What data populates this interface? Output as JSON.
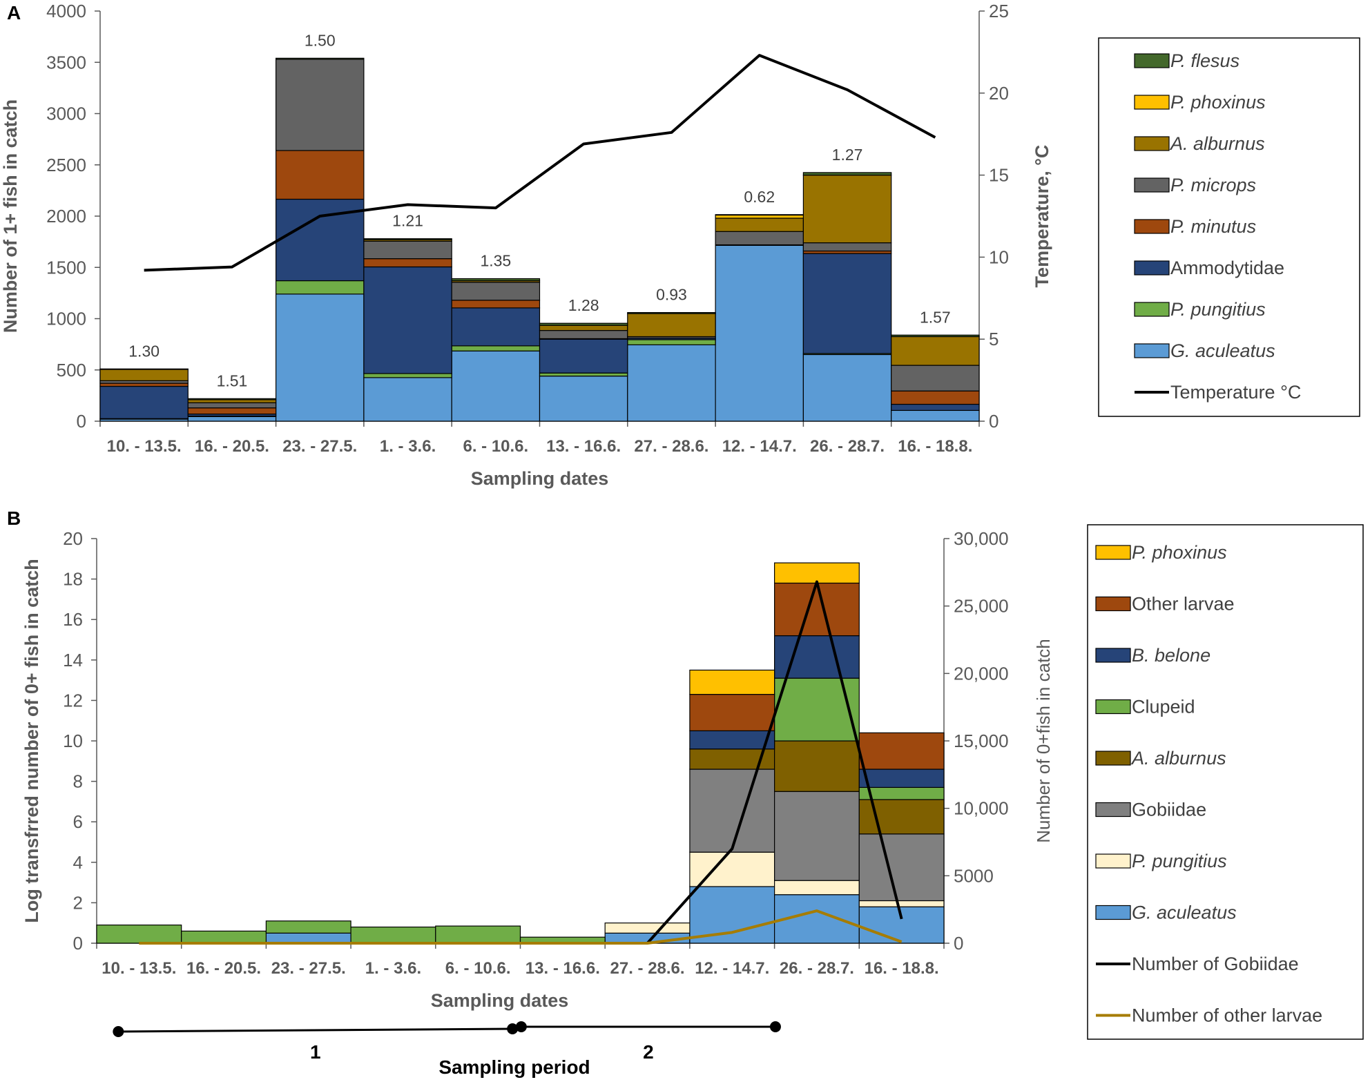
{
  "chart_data": [
    {
      "panel": "A",
      "type": "bar",
      "stacked": true,
      "ylabel": "Number of 1+ fish in catch",
      "y2label": "Temperature, °C",
      "xlabel": "Sampling dates",
      "ylim": [
        0,
        4000
      ],
      "yticks": [
        0,
        500,
        1000,
        1500,
        2000,
        2500,
        3000,
        3500,
        4000
      ],
      "y2lim": [
        0,
        25
      ],
      "y2ticks": [
        0,
        5,
        10,
        15,
        20,
        25
      ],
      "categories": [
        "10. - 13.5.",
        "16. - 20.5.",
        "23. - 27.5.",
        "1. - 3.6.",
        "6. - 10.6.",
        "13. - 16.6.",
        "27. - 28.6.",
        "12. - 14.7.",
        "26. - 28.7.",
        "16. - 18.8."
      ],
      "series": [
        {
          "name": "G. aculeatus",
          "color": "#5B9BD5",
          "italic": true,
          "values": [
            20,
            45,
            1240,
            425,
            685,
            440,
            745,
            1715,
            650,
            105
          ]
        },
        {
          "name": "P. pungitius",
          "color": "#70AD47",
          "italic": true,
          "values": [
            5,
            5,
            130,
            40,
            50,
            30,
            50,
            0,
            10,
            0
          ]
        },
        {
          "name": "Ammodytidae",
          "color": "#264478",
          "italic": false,
          "values": [
            315,
            20,
            795,
            1040,
            370,
            330,
            15,
            0,
            975,
            60
          ]
        },
        {
          "name": "P. minutus",
          "color": "#9E480E",
          "italic": true,
          "values": [
            30,
            60,
            475,
            80,
            75,
            5,
            0,
            5,
            25,
            130
          ]
        },
        {
          "name": "P. microps",
          "color": "#636363",
          "italic": true,
          "values": [
            25,
            50,
            890,
            170,
            175,
            80,
            15,
            130,
            80,
            250
          ]
        },
        {
          "name": "A. alburnus",
          "color": "#997300",
          "italic": true,
          "values": [
            110,
            30,
            0,
            15,
            15,
            50,
            225,
            130,
            660,
            280
          ]
        },
        {
          "name": "P. phoxinus",
          "color": "#FFC000",
          "italic": true,
          "values": [
            0,
            0,
            0,
            0,
            0,
            0,
            0,
            30,
            0,
            0
          ]
        },
        {
          "name": "P. flesus",
          "color": "#43682B",
          "italic": true,
          "values": [
            5,
            10,
            10,
            10,
            20,
            20,
            10,
            5,
            25,
            15
          ]
        }
      ],
      "line": {
        "name": "Temperature °C",
        "color": "#000000",
        "values": [
          9.2,
          9.4,
          12.5,
          13.2,
          13.0,
          16.9,
          17.6,
          22.3,
          20.2,
          17.3
        ]
      },
      "bar_labels": [
        "1.30",
        "1.51",
        "1.50",
        "1.21",
        "1.35",
        "1.28",
        "0.93",
        "0.62",
        "1.27",
        "1.57"
      ],
      "legend": [
        "P. flesus",
        "P. phoxinus",
        "A. alburnus",
        "P. microps",
        "P. minutus",
        "Ammodytidae",
        "P. pungitius",
        "G. aculeatus",
        "Temperature °C"
      ]
    },
    {
      "panel": "B",
      "type": "bar",
      "stacked": true,
      "ylabel": "Log transfrred number of 0+ fish in catch",
      "y2label": "Number of 0+fish in catch",
      "xlabel": "Sampling dates",
      "ylim": [
        0,
        20
      ],
      "yticks": [
        0,
        2,
        4,
        6,
        8,
        10,
        12,
        14,
        16,
        18,
        20
      ],
      "y2lim": [
        0,
        30000
      ],
      "y2ticks": [
        "0",
        "5000",
        "10,000",
        "15,000",
        "20,000",
        "25,000",
        "30,000"
      ],
      "categories": [
        "10. - 13.5.",
        "16. - 20.5.",
        "23. - 27.5.",
        "1. - 3.6.",
        "6. - 10.6.",
        "13. - 16.6.",
        "27. - 28.6.",
        "12. - 14.7.",
        "26. - 28.7.",
        "16. - 18.8."
      ],
      "series": [
        {
          "name": "G. aculeatus",
          "color": "#5B9BD5",
          "italic": true,
          "values": [
            0,
            0,
            0.5,
            0,
            0,
            0,
            0.5,
            2.8,
            2.4,
            1.8
          ]
        },
        {
          "name": "P. pungitius",
          "color": "#FFF2CC",
          "italic": true,
          "values": [
            0,
            0,
            0,
            0,
            0,
            0,
            0.5,
            1.7,
            0.7,
            0.3
          ]
        },
        {
          "name": "Gobiidae",
          "color": "#808080",
          "italic": false,
          "values": [
            0,
            0,
            0,
            0,
            0,
            0,
            0,
            4.1,
            4.4,
            3.3
          ]
        },
        {
          "name": "A. alburnus",
          "color": "#7F6000",
          "italic": true,
          "values": [
            0,
            0,
            0,
            0,
            0,
            0,
            0,
            1.0,
            2.5,
            1.7
          ]
        },
        {
          "name": "Clupeid",
          "color": "#70AD47",
          "italic": false,
          "values": [
            0.9,
            0.6,
            0.6,
            0.8,
            0.85,
            0.3,
            0,
            0,
            3.1,
            0.6
          ]
        },
        {
          "name": "B. belone",
          "color": "#264478",
          "italic": true,
          "values": [
            0,
            0,
            0,
            0,
            0,
            0,
            0,
            0.9,
            2.1,
            0.9
          ]
        },
        {
          "name": "Other larvae",
          "color": "#9E480E",
          "italic": false,
          "values": [
            0,
            0,
            0,
            0,
            0,
            0,
            0,
            1.8,
            2.6,
            1.8
          ]
        },
        {
          "name": "P. phoxinus",
          "color": "#FFC000",
          "italic": true,
          "values": [
            0,
            0,
            0,
            0,
            0,
            0,
            0,
            1.2,
            1.0,
            0
          ]
        }
      ],
      "lines": [
        {
          "name": "Number of Gobiidae",
          "color": "#000000",
          "values": [
            0,
            0,
            0,
            0,
            0,
            0,
            0,
            7000,
            26800,
            1800
          ],
          "start_index": 6
        },
        {
          "name": "Number of other larvae",
          "color": "#A67C00",
          "values": [
            0,
            0,
            0,
            0,
            0,
            0,
            0,
            800,
            2400,
            100
          ],
          "start_index": 0
        }
      ],
      "legend": [
        "P. phoxinus",
        "Other larvae",
        "B. belone",
        "Clupeid",
        "A. alburnus",
        "Gobiidae",
        "P. pungitius",
        "G. aculeatus",
        "Number of Gobiidae",
        "Number of other larvae"
      ],
      "sampling_period": {
        "title": "Sampling period",
        "periods": [
          {
            "label": "1",
            "from_index": 0,
            "to_index": 4
          },
          {
            "label": "2",
            "from_index": 5,
            "to_index": 8
          }
        ]
      }
    }
  ]
}
